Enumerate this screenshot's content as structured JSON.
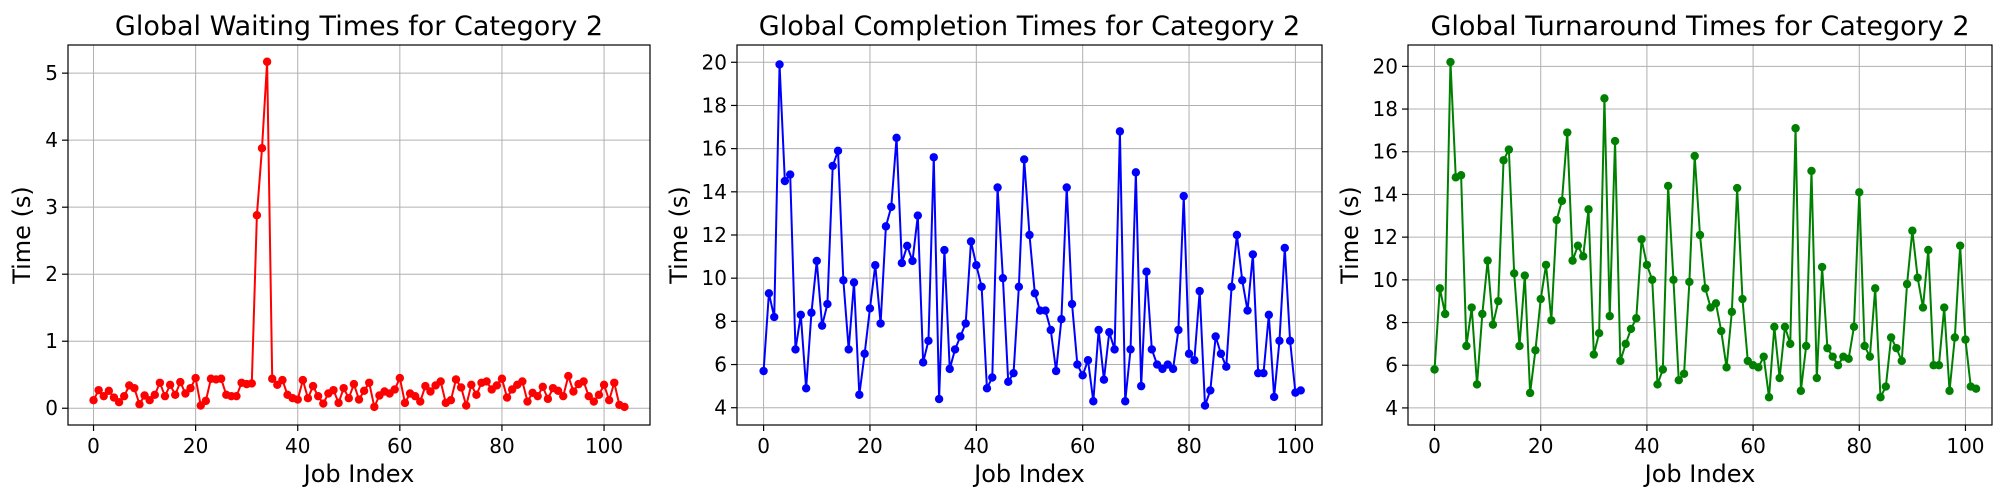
{
  "chart_data": [
    {
      "type": "line",
      "title": "Global Waiting Times for Category 2",
      "xlabel": "Job Index",
      "ylabel": "Time (s)",
      "xlim": [
        -5,
        109
      ],
      "ylim": [
        -0.25,
        5.42
      ],
      "xticks": [
        0,
        20,
        40,
        60,
        80,
        100
      ],
      "yticks": [
        0,
        1,
        2,
        3,
        4,
        5
      ],
      "grid": true,
      "color": "#ff0000",
      "series": [
        {
          "values": [
            0.12,
            0.27,
            0.18,
            0.26,
            0.16,
            0.09,
            0.18,
            0.34,
            0.3,
            0.06,
            0.19,
            0.12,
            0.2,
            0.38,
            0.18,
            0.35,
            0.2,
            0.39,
            0.22,
            0.3,
            0.45,
            0.04,
            0.11,
            0.44,
            0.43,
            0.44,
            0.2,
            0.18,
            0.18,
            0.38,
            0.36,
            0.37,
            2.88,
            3.88,
            5.17,
            0.44,
            0.35,
            0.42,
            0.2,
            0.15,
            0.13,
            0.42,
            0.15,
            0.33,
            0.18,
            0.07,
            0.22,
            0.27,
            0.08,
            0.3,
            0.15,
            0.36,
            0.13,
            0.26,
            0.38,
            0.02,
            0.19,
            0.25,
            0.22,
            0.28,
            0.45,
            0.08,
            0.22,
            0.18,
            0.1,
            0.33,
            0.25,
            0.34,
            0.4,
            0.08,
            0.12,
            0.43,
            0.31,
            0.04,
            0.35,
            0.2,
            0.38,
            0.4,
            0.28,
            0.34,
            0.44,
            0.16,
            0.28,
            0.35,
            0.4,
            0.1,
            0.23,
            0.18,
            0.32,
            0.14,
            0.3,
            0.26,
            0.18,
            0.48,
            0.25,
            0.36,
            0.4,
            0.18,
            0.1,
            0.2,
            0.35,
            0.12,
            0.38,
            0.05,
            0.02
          ]
        }
      ]
    },
    {
      "type": "line",
      "title": "Global Completion Times for Category 2",
      "xlabel": "Job Index",
      "ylabel": "Time (s)",
      "xlim": [
        -5,
        105
      ],
      "ylim": [
        3.2,
        20.8
      ],
      "xticks": [
        0,
        20,
        40,
        60,
        80,
        100
      ],
      "yticks": [
        4,
        6,
        8,
        10,
        12,
        14,
        16,
        18,
        20
      ],
      "grid": true,
      "color": "#0000ff",
      "series": [
        {
          "values": [
            5.7,
            9.3,
            8.2,
            19.9,
            14.5,
            14.8,
            6.7,
            8.3,
            4.9,
            8.4,
            10.8,
            7.8,
            8.8,
            15.2,
            15.9,
            9.9,
            6.7,
            9.8,
            4.6,
            6.5,
            8.6,
            10.6,
            7.9,
            12.4,
            13.3,
            16.5,
            10.7,
            11.5,
            10.8,
            12.9,
            6.1,
            7.1,
            15.6,
            4.4,
            11.3,
            5.8,
            6.7,
            7.3,
            7.9,
            11.7,
            10.6,
            9.6,
            4.9,
            5.4,
            14.2,
            10.0,
            5.2,
            5.6,
            9.6,
            15.5,
            12.0,
            9.3,
            8.5,
            8.5,
            7.6,
            5.7,
            8.1,
            14.2,
            8.8,
            6.0,
            5.5,
            6.2,
            4.3,
            7.6,
            5.3,
            7.5,
            6.7,
            16.8,
            4.3,
            6.7,
            14.9,
            5.0,
            10.3,
            6.7,
            6.0,
            5.8,
            6.0,
            5.8,
            7.6,
            13.8,
            6.5,
            6.2,
            9.4,
            4.1,
            4.8,
            7.3,
            6.5,
            5.9,
            9.6,
            12.0,
            9.9,
            8.5,
            11.1,
            5.6,
            5.6,
            8.3,
            4.5,
            7.1,
            11.4,
            7.1,
            4.7,
            4.8
          ]
        }
      ]
    },
    {
      "type": "line",
      "title": "Global Turnaround Times for Category 2",
      "xlabel": "Job Index",
      "ylabel": "Time (s)",
      "xlim": [
        -5,
        105
      ],
      "ylim": [
        3.2,
        21.0
      ],
      "xticks": [
        0,
        20,
        40,
        60,
        80,
        100
      ],
      "yticks": [
        4,
        6,
        8,
        10,
        12,
        14,
        16,
        18,
        20
      ],
      "grid": true,
      "color": "#008000",
      "series": [
        {
          "values": [
            5.8,
            9.6,
            8.4,
            20.2,
            14.8,
            14.9,
            6.9,
            8.7,
            5.1,
            8.4,
            10.9,
            7.9,
            9.0,
            15.6,
            16.1,
            10.3,
            6.9,
            10.2,
            4.7,
            6.7,
            9.1,
            10.7,
            8.1,
            12.8,
            13.7,
            16.9,
            10.9,
            11.6,
            11.1,
            13.3,
            6.5,
            7.5,
            18.5,
            8.3,
            16.5,
            6.2,
            7.0,
            7.7,
            8.2,
            11.9,
            10.7,
            10.0,
            5.1,
            5.8,
            14.4,
            10.0,
            5.3,
            5.6,
            9.9,
            15.8,
            12.1,
            9.6,
            8.7,
            8.9,
            7.6,
            5.9,
            8.5,
            14.3,
            9.1,
            6.2,
            6.0,
            5.9,
            6.4,
            4.5,
            7.8,
            5.4,
            7.8,
            7.0,
            17.1,
            4.8,
            6.9,
            15.1,
            5.4,
            10.6,
            6.8,
            6.4,
            6.0,
            6.4,
            6.3,
            7.8,
            14.1,
            6.9,
            6.4,
            9.6,
            4.5,
            5.0,
            7.3,
            6.8,
            6.2,
            9.8,
            12.3,
            10.1,
            8.7,
            11.4,
            6.0,
            6.0,
            8.7,
            4.8,
            7.3,
            11.6,
            7.2,
            5.0,
            4.9
          ]
        }
      ]
    }
  ]
}
